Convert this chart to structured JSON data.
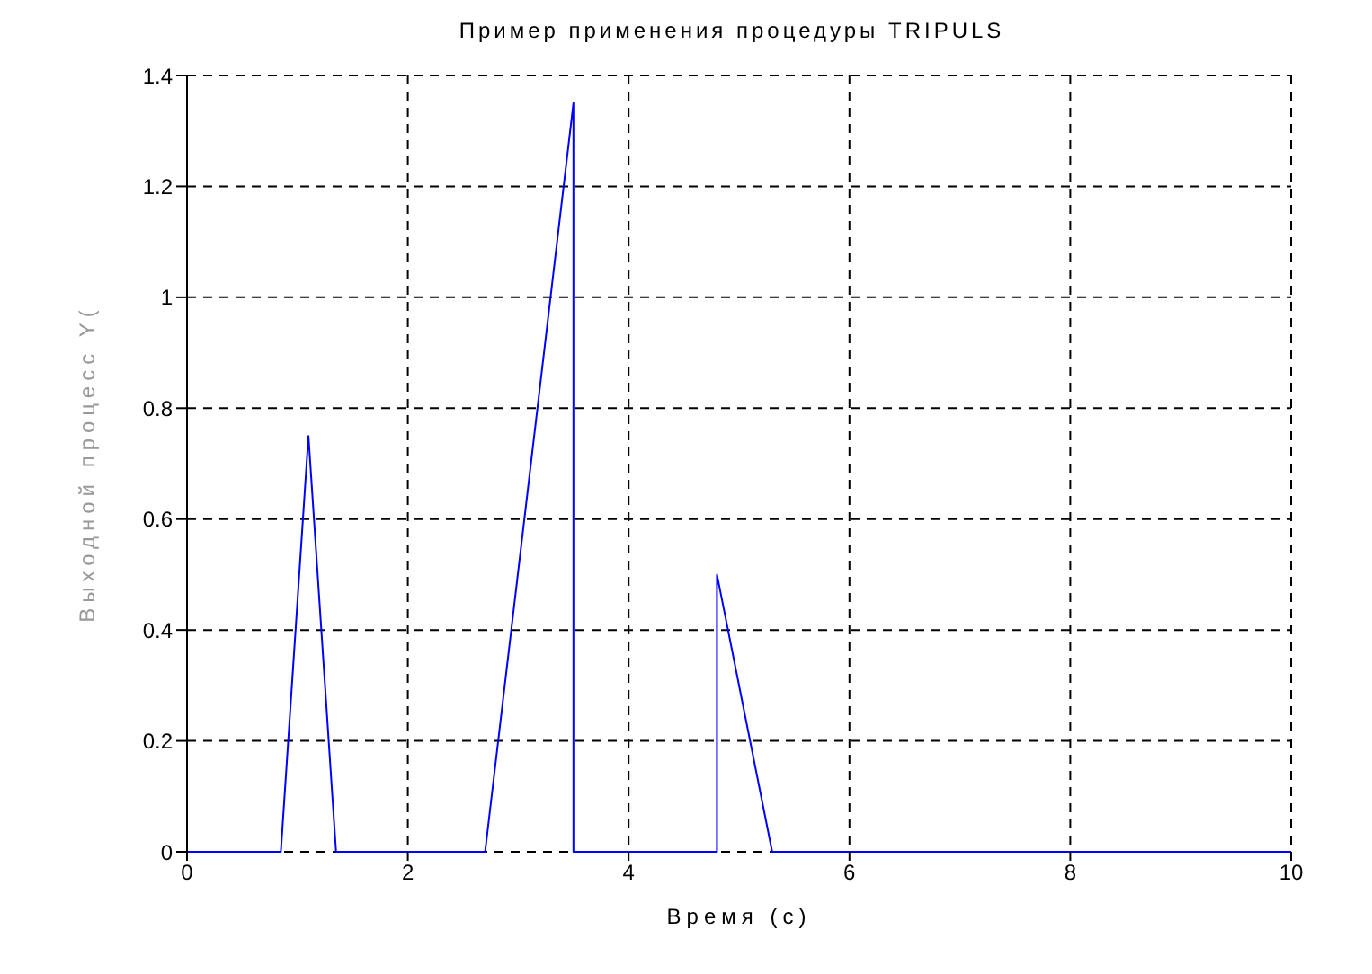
{
  "chart_data": {
    "type": "line",
    "title": "Пример применения процедуры TRIPULS",
    "xlabel": "Время (с)",
    "ylabel": "Выходной процесс Y(",
    "series": [
      {
        "color": "#0000ff",
        "x": [
          0,
          0.85,
          1.1,
          1.35,
          2.7,
          3.5,
          3.5,
          4.8,
          4.8,
          5.3,
          10
        ],
        "values": [
          0,
          0,
          0.75,
          0,
          0,
          1.35,
          0,
          0,
          0.5,
          0,
          0
        ]
      }
    ],
    "xlim": [
      0,
      10
    ],
    "xticks": [
      0,
      2,
      4,
      6,
      8,
      10
    ],
    "ylim": [
      0,
      1.4
    ],
    "yticks": [
      0,
      0.2,
      0.4,
      0.6,
      0.8,
      1,
      1.2,
      1.4
    ],
    "grid": true,
    "line_style": "solid"
  }
}
